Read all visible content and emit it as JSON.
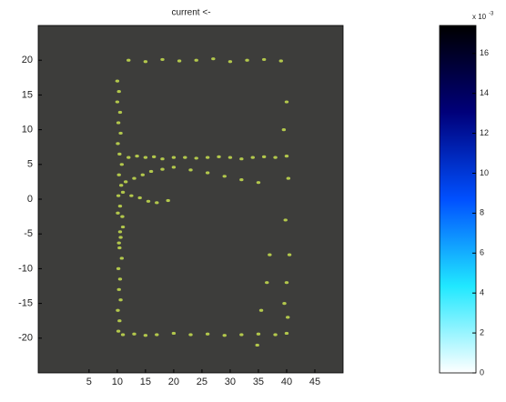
{
  "chart_data": {
    "type": "scatter",
    "title": "current <-",
    "xlim": [
      -4,
      50
    ],
    "xticks": [
      5,
      10,
      15,
      20,
      25,
      30,
      35,
      40,
      45
    ],
    "ylim": [
      -25,
      25
    ],
    "yticks": [
      -20,
      -15,
      -10,
      -5,
      0,
      5,
      10,
      15,
      20
    ],
    "background": "#3d3d3b",
    "series": [
      {
        "color": "#c8e050",
        "x": [
          10,
          10.3,
          10,
          10.5,
          10.2,
          10.6,
          10.1,
          10.4,
          10.8,
          10.3,
          10.7,
          10.2,
          10.5,
          10.9,
          11,
          10.6,
          10.4,
          10.8,
          10.2,
          10.5,
          10.3,
          10.6,
          10.1,
          10.4,
          10.2,
          10.5,
          10.3,
          10.1,
          12,
          13.5,
          15,
          16.5,
          18,
          20,
          22,
          24,
          26,
          28,
          30,
          32,
          34,
          36,
          38,
          40,
          11.5,
          13,
          14.5,
          16,
          18,
          20,
          23,
          26,
          29,
          32,
          35,
          11,
          12.5,
          14,
          15.5,
          17,
          19,
          11,
          13,
          15,
          17,
          20,
          23,
          26,
          29,
          32,
          35,
          38,
          40,
          12,
          15,
          18,
          21,
          24,
          27,
          30,
          33,
          36,
          39,
          40,
          39.5,
          40.3,
          39.8,
          40.5,
          40,
          39.6,
          40.2,
          37,
          36.5,
          35.5,
          34.8
        ],
        "y": [
          17,
          15.5,
          14,
          12.5,
          11,
          9.5,
          8,
          6.5,
          5,
          3.5,
          2,
          0.5,
          -1,
          -2.5,
          -4,
          -5.5,
          -7,
          -8.5,
          -10,
          -11.5,
          -13,
          -14.5,
          -16,
          -17.5,
          -19,
          -4.7,
          -6.3,
          -2,
          6,
          6.2,
          6,
          6.1,
          5.8,
          6,
          6,
          5.9,
          6,
          6.1,
          6,
          5.8,
          6,
          6.1,
          6,
          6.2,
          2.5,
          3,
          3.5,
          4,
          4.3,
          4.6,
          4.2,
          3.8,
          3.3,
          2.8,
          2.4,
          1,
          0.5,
          0.2,
          -0.3,
          -0.5,
          -0.2,
          -19.5,
          -19.4,
          -19.6,
          -19.5,
          -19.3,
          -19.5,
          -19.4,
          -19.6,
          -19.5,
          -19.4,
          -19.5,
          -19.3,
          20,
          19.8,
          20.1,
          19.9,
          20,
          20.2,
          19.8,
          20,
          20.1,
          19.9,
          14,
          10,
          3,
          -3,
          -8,
          -12,
          -15,
          -17,
          -8,
          -12,
          -16,
          -21
        ]
      }
    ],
    "colorbar": {
      "label": "x 10",
      "exponent": "-3",
      "lim": [
        0,
        17.4
      ],
      "ticks": [
        0,
        2,
        4,
        6,
        8,
        10,
        12,
        14,
        16
      ],
      "colors": [
        "#ffffff",
        "#20e8ff",
        "#0050ff",
        "#00007a",
        "#000000"
      ]
    }
  }
}
